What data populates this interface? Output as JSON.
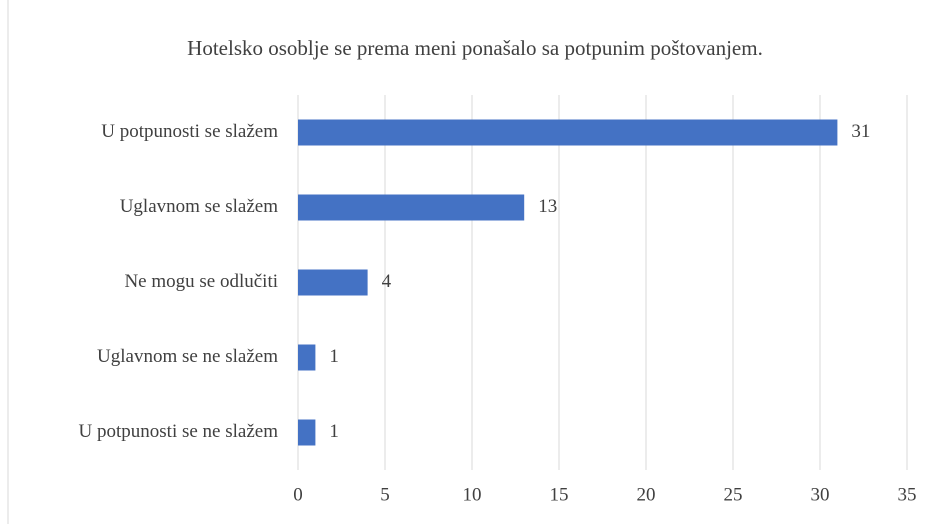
{
  "chart_data": {
    "type": "bar",
    "orientation": "horizontal",
    "title": "Hotelsko osoblje se prema meni ponašalo sa potpunim poštovanjem.",
    "categories": [
      "U potpunosti se slažem",
      "Uglavnom se slažem",
      "Ne mogu se odlučiti",
      "Uglavnom se ne slažem",
      "U potpunosti se ne slažem"
    ],
    "values": [
      31,
      13,
      4,
      1,
      1
    ],
    "color": "#4472c4",
    "xlim": [
      0,
      35
    ],
    "xticks": [
      0,
      5,
      10,
      15,
      20,
      25,
      30,
      35
    ],
    "grid": true
  }
}
